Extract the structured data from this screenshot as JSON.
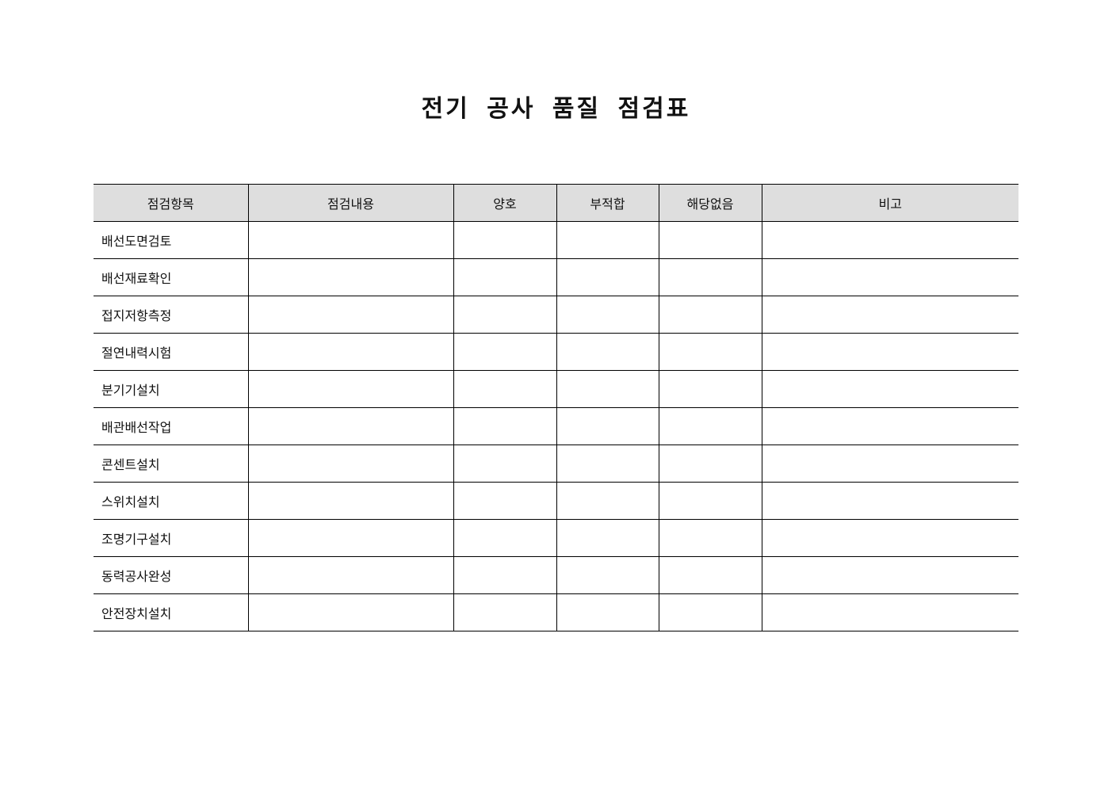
{
  "title": "전기 공사 품질 점검표",
  "table": {
    "headers": [
      "점검항목",
      "점검내용",
      "양호",
      "부적합",
      "해당없음",
      "비고"
    ],
    "rows": [
      "배선도면검토",
      "배선재료확인",
      "접지저항측정",
      "절연내력시험",
      "분기기설치",
      "배관배선작업",
      "콘센트설치",
      "스위치설치",
      "조명기구설치",
      "동력공사완성",
      "안전장치설치"
    ]
  }
}
